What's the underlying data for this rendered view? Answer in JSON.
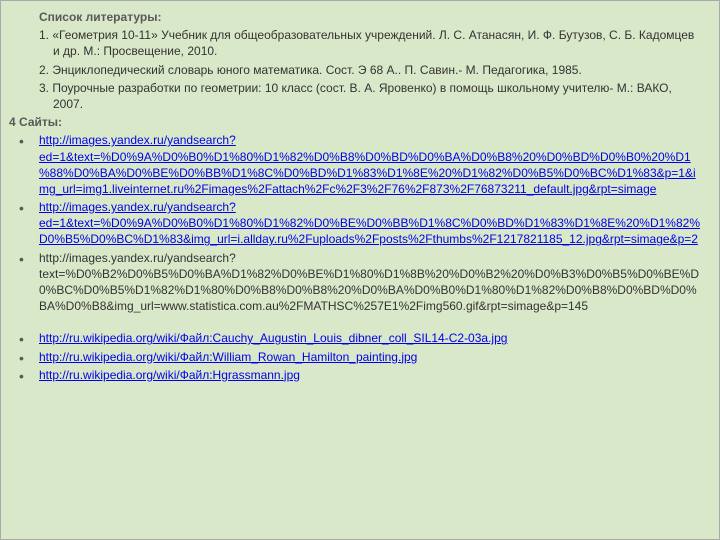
{
  "heading": "Список литературы:",
  "items": [
    "1. «Геометрия 10-11» Учебник для общеобразовательных учреждений. Л. С. Атанасян, И. Ф. Бутузов, С. Б. Кадомцев и др. М.: Просвещение, 2010.",
    "2.  Энциклопедический словарь юного математика. Сост. Э 68 А.. П. Савин.- М. Педагогика, 1985.",
    "3.  Поурочные  разработки по геометрии: 10 класс (сост. В. А. Яровенко) в помощь школьному учителю- М.: ВАКО, 2007."
  ],
  "subheading": " 4 Сайты:",
  "links": [
    {
      "text": "http://images.yandex.ru/yandsearch?ed=1&text=%D0%9A%D0%B0%D1%80%D1%82%D0%B8%D0%BD%D0%BA%D0%B8%20%D0%BD%D0%B0%20%D1%88%D0%BA%D0%BE%D0%BB%D1%8C%D0%BD%D1%83%D1%8E%20%D1%82%D0%B5%D0%BC%D1%83&p=1&img_url=img1.liveinternet.ru%2Fimages%2Fattach%2Fc%2F3%2F76%2F873%2F76873211_default.jpg&rpt=simage",
      "isLink": true
    },
    {
      "text": "http://images.yandex.ru/yandsearch?ed=1&text=%D0%9A%D0%B0%D1%80%D1%82%D0%BE%D0%BB%D1%8C%D0%BD%D1%83%D1%8E%20%D1%82%D0%B5%D0%BC%D1%83&p=2",
      "isLink": true,
      "override": "http://images.yandex.ru/yandsearch?ed=1&text=%D0%9A%D0%B0%D1%80%D1%82%D0%BB%D1%8C%D0%BD%D1%83%D1%8E%20%D1%82%D0%BE%D0%BB%D1%8C%D0%BD%D1%83%D1%8E%20%D1%82%D0%B5%D0%BC%D1%83&img_url=i.allday.ru%2Fuploads%2Fposts%2Fthumbs%2F1217821185_12.jpg&rpt=simage&p=2"
    },
    {
      "text": "http://images.yandex.ru/yandsearch?text=%D0%B2%D0%B5%D0%BA%D1%82%D0%BE%D1%80%D1%8B%20%D0%B2%20%D0%B3%D0%B5%D0%BE%D0%BC%D0%B5%D1%82%D1%80%D0%B8%D0%B8%20%D0%BA%D0%B0%D1%80%D1%82%D0%B8%D0%BD%D0%BA%D0%B8&img_url=www.statistica.com.au%2FMATHSC%257E1%2Fimg560.gif&rpt=simage&p=145",
      "isLink": false
    }
  ],
  "links2": [
    {
      "text": "http://ru.wikipedia.org/wiki/Файл:Cauchy_Augustin_Louis_dibner_coll_SIL14-C2-03a.jpg",
      "isLink": true
    },
    {
      "text": "http://ru.wikipedia.org/wiki/Файл:William_Rowan_Hamilton_painting.jpg",
      "isLink": true
    },
    {
      "text": "http://ru.wikipedia.org/wiki/Файл:Hgrassmann.jpg",
      "isLink": true
    }
  ],
  "link2_full": "http://images.yandex.ru/yandsearch?ed=1&text=%D0%9A%D0%B0%D1%80%D1%82%D0%BB%D1%8C%D0%BD%D1%83%D1%8E%20%D1%82%D0%BE%D0%BB%D1%8C%D0%BD%D1%83%D1%8E%20%D1%82%D0%B5%D0%BC%D1%83&img_url=i.allday.ru%2Fuploads%2Fposts%2Fthumbs%2F1217821185_12.jpg&rpt=simage&p=2",
  "actual_link2": "http://images.yandex.ru/yandsearch?ed=1&text=%D0%9A%D0%B0%D1%80%D1%82%D0%BB%D1%8C%D0%BD%D1%83%D1%8E%20%D1%82%D0%BE%D0%BB%D1%8C%D0%BD%D1%83%D1%8E%20%D1%82%D0%B5%D0%BC%D1%83&img_url=i.allday.ru%2Fuploads%2Fposts%2Fthumbs%2F1217821185_12.jpg&rpt=simage&p=2",
  "colors": {
    "background": "#d9e8c8",
    "text": "#333333",
    "heading": "#595959",
    "link": "#0000ee"
  },
  "real_links": {
    "l1": "http://images.yandex.ru/yandsearch?ed=1&text=%D0%9A%D0%B0%D1%80%D1%82%D0%B8%D0%BD%D0%BA%D0%B8%20%D0%BD%D0%B0%20%D1%88%D0%BA%D0%BE%D0%BB%D1%8C%D0%BD%D1%83%D1%8E%20%D1%82%D0%B5%D0%BC%D1%83&p=1&img_url=img1.liveinternet.ru%2Fimages%2Fattach%2Fc%2F3%2F76%2F873%2F76873211_default.jpg&rpt=simage",
    "l2": "http://images.yandex.ru/yandsearch?ed=1&text=%D0%9A%D0%B0%D1%80%D1%82%D0%BB%D1%8C%D0%BD%D1%83%D1%8E%20%D1%82%D0%BE%D0%BB%D1%8C%D0%BD%D1%83%D1%8E%20%D1%82%D0%B5%D0%BC%D1%83&img_url=i.allday.ru%2Fuploads%2Fposts%2Fthumbs%2F1217821185_12.jpg&rpt=simage&p=2",
    "l3": "http://images.yandex.ru/yandsearch?text=%D0%B2%D0%B5%D0%BA%D1%82%D0%BE%D1%80%D1%8B%20%D0%B2%20%D0%B3%D0%B5%D0%BE%D0%BC%D0%B5%D1%82%D1%80%D0%B8%D0%B8%20%D0%BA%D0%B0%D1%80%D1%82%D0%B8%D0%BD%D0%BA%D0%B8&img_url=www.statistica.com.au%2FMATHSC%257E1%2Fimg560.gif&rpt=simage&p=145",
    "w1": "http://ru.wikipedia.org/wiki/Файл:Cauchy_Augustin_Louis_dibner_coll_SIL14-C2-03a.jpg",
    "w2": "http://ru.wikipedia.org/wiki/Файл:William_Rowan_Hamilton_painting.jpg",
    "w3": "http://ru.wikipedia.org/wiki/Файл:Hgrassmann.jpg"
  },
  "l2_display": "http://images.yandex.ru/yandsearch?ed=1&text=%D0%9A%D0%B0%D1%80%D1%82%D0%BB%D1%8C%D0%BD%D1%83%D1%8E%20%D1%82%D0%BE%D0%BB%D1%8C%D0%BD%D1%83%D1%8E%20%D1%82%D0%B5%D0%BC%D1%83&img_url=i.allday.ru%2Fuploads%2Fposts%2Fthumbs%2F1217821185_12.jpg&rpt=simage&p=2",
  "l2_real": "http://images.yandex.ru/yandsearch?ed=1&text=%D0%9A%D0%B0%D1%80%D1%82%D0%BE%D0%BB%D1%8C%D0%BD%D1%83%D1%8E%20%D1%82%D0%B5%D0%BC%D1%83&img_url=i.allday.ru%2Fuploads%2Fposts%2Fthumbs%2F1217821185_12.jpg&rpt=simage&p=2",
  "second_link_text": "http://images.yandex.ru/yandsearch?ed=1&text=%D0%9A%D0%B0%D1%80%D1%82%D0%BE%D0%BB%D1%8C%D0%BD%D1%83%D1%8E%20%D1%82%D0%B5%D0%BC%D1%83&img_url=i.allday.ru%2Fuploads%2Fposts%2Fthumbs%2F1217821185_12.jpg&rpt=simage&p=2"
}
